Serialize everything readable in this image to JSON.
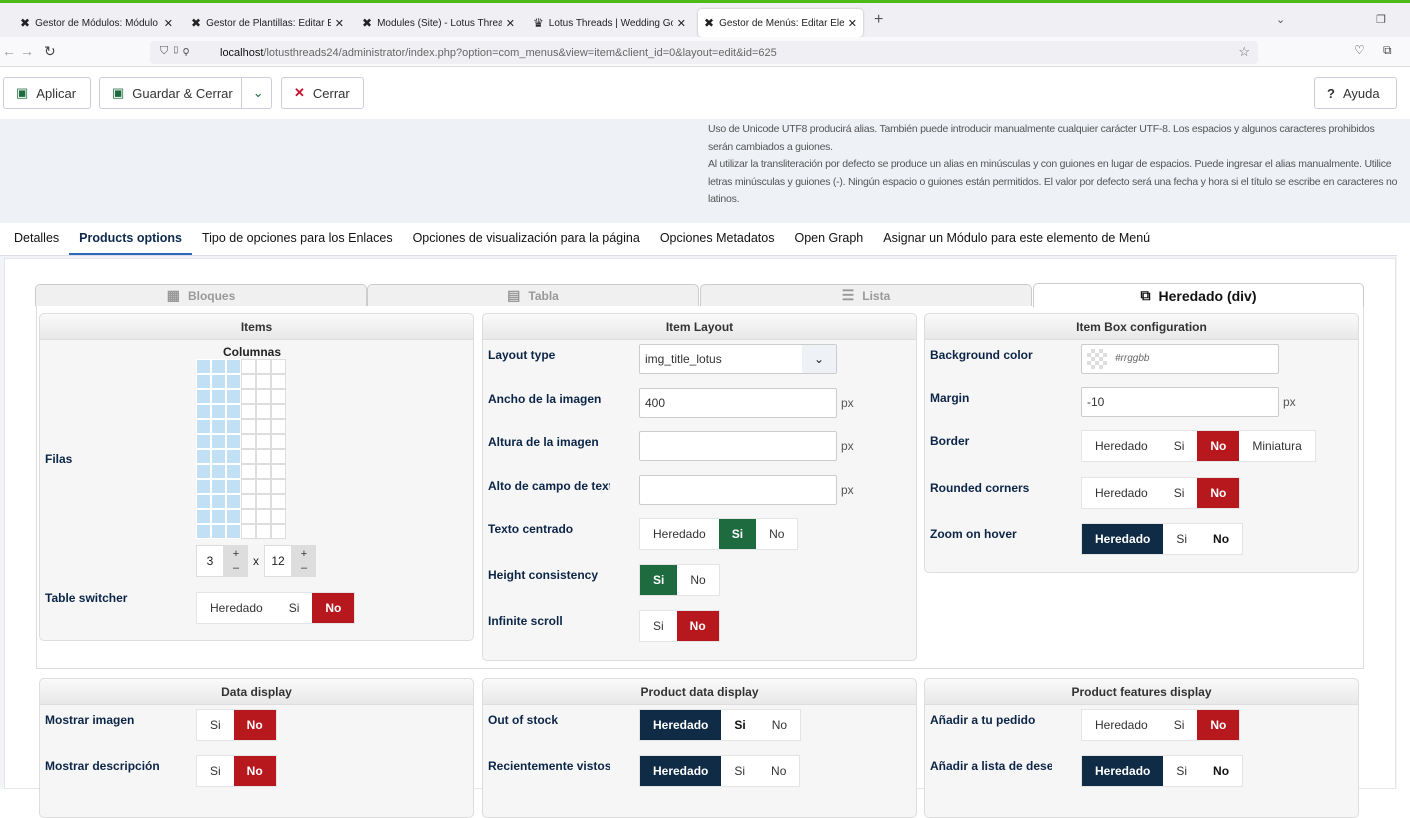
{
  "browser": {
    "tabs": [
      {
        "title": "Gestor de Módulos: Módulo me",
        "icon": "joomla-icon"
      },
      {
        "title": "Gestor de Plantillas: Editar Estilo",
        "icon": "joomla-icon"
      },
      {
        "title": "Modules (Site) - Lotus Threads",
        "icon": "joomla-icon"
      },
      {
        "title": "Lotus Threads | Wedding Gowns",
        "icon": "lotus-icon"
      },
      {
        "title": "Gestor de Menús: Editar Elemen",
        "icon": "joomla-icon",
        "active": true
      }
    ],
    "url_host": "localhost",
    "url_path": "/lotusthreads24/administrator/index.php?option=com_menus&view=item&client_id=0&layout=edit&id=625"
  },
  "toolbar": {
    "apply": "Aplicar",
    "save_close": "Guardar & Cerrar",
    "close": "Cerrar",
    "help": "Ayuda"
  },
  "description": [
    "Uso de Unicode UTF8 producirá alias. También puede introducir manualmente cualquier carácter UTF-8. Los espacios y algunos caracteres prohibidos serán cambiados a guiones.",
    "Al utilizar la transliteración por defecto se produce un alias en minúsculas y con guiones en lugar de espacios. Puede ingresar el alias manualmente. Utilice letras minúsculas y guiones (-). Ningún espacio o guiones están permitidos. El valor por defecto será una fecha y hora si el título se escribe en caracteres no latinos."
  ],
  "tabs": [
    "Detalles",
    "Products options",
    "Tipo de opciones para los Enlaces",
    "Opciones de visualización para la página",
    "Opciones Metadatos",
    "Open Graph",
    "Asignar un Módulo para este elemento de Menú"
  ],
  "active_tab": 1,
  "subtabs": [
    {
      "label": "Bloques",
      "icon": "blocks-icon"
    },
    {
      "label": "Tabla",
      "icon": "table-icon"
    },
    {
      "label": "Lista",
      "icon": "list-icon"
    },
    {
      "label": "Heredado (div)",
      "icon": "div-icon",
      "active": true
    }
  ],
  "colors": {
    "red": "#b7181e",
    "green": "#1e6b40",
    "navy": "#0f2b46"
  },
  "items_panel": {
    "title": "Items",
    "columns_label": "Columnas",
    "rows_label": "Filas",
    "columns": 3,
    "rows": 12,
    "grid_max_columns": 6,
    "x": "x",
    "table_switcher": {
      "label": "Table switcher",
      "options": [
        "Heredado",
        "Si",
        "No"
      ],
      "active": 2,
      "color": "red"
    }
  },
  "panels": [
    {
      "title": "Item Layout",
      "rows": [
        {
          "label": "Layout type",
          "type": "select",
          "value": "img_title_lotus"
        },
        {
          "label": "Ancho de la imagen",
          "type": "input",
          "value": "400",
          "unit": "px"
        },
        {
          "label": "Altura de la imagen",
          "type": "input",
          "value": "",
          "unit": "px"
        },
        {
          "label": "Alto de campo de texto",
          "type": "input",
          "value": "",
          "unit": "px"
        },
        {
          "label": "Texto centrado",
          "type": "seg",
          "options": [
            "Heredado",
            "Si",
            "No"
          ],
          "active": 1,
          "color": "green"
        },
        {
          "label": "Height consistency",
          "type": "seg",
          "options": [
            "Si",
            "No"
          ],
          "active": 0,
          "color": "green"
        },
        {
          "label": "Infinite scroll",
          "type": "seg",
          "options": [
            "Si",
            "No"
          ],
          "active": 1,
          "color": "red"
        }
      ]
    },
    {
      "title": "Item Box configuration",
      "rows": [
        {
          "label": "Background color",
          "type": "color",
          "placeholder": "#rrggbb"
        },
        {
          "label": "Margin",
          "type": "input",
          "value": "-10",
          "unit": "px"
        },
        {
          "label": "Border",
          "type": "seg",
          "options": [
            "Heredado",
            "Si",
            "No",
            "Miniatura"
          ],
          "active": 2,
          "color": "red"
        },
        {
          "label": "Rounded corners",
          "type": "seg",
          "options": [
            "Heredado",
            "Si",
            "No"
          ],
          "active": 2,
          "color": "red"
        },
        {
          "label": "Zoom on hover",
          "type": "seg",
          "options": [
            "Heredado",
            "Si",
            "No"
          ],
          "active": 0,
          "color": "navy",
          "bold": 2
        }
      ]
    },
    {
      "title": "Data display",
      "rows": [
        {
          "label": "Mostrar imagen",
          "type": "seg",
          "options": [
            "Si",
            "No"
          ],
          "active": 1,
          "color": "red"
        },
        {
          "label": "Mostrar descripción",
          "type": "seg",
          "options": [
            "Si",
            "No"
          ],
          "active": 1,
          "color": "red"
        }
      ]
    },
    {
      "title": "Product data display",
      "rows": [
        {
          "label": "Out of stock",
          "type": "seg",
          "options": [
            "Heredado",
            "Si",
            "No"
          ],
          "active": 0,
          "color": "navy",
          "bold": 1
        },
        {
          "label": "Recientemente vistos",
          "type": "seg",
          "options": [
            "Heredado",
            "Si",
            "No"
          ],
          "active": 0,
          "color": "navy"
        }
      ]
    },
    {
      "title": "Product features display",
      "rows": [
        {
          "label": "Añadir a tu pedido",
          "type": "seg",
          "options": [
            "Heredado",
            "Si",
            "No"
          ],
          "active": 2,
          "color": "red"
        },
        {
          "label": "Añadir a lista de deseos",
          "type": "seg",
          "options": [
            "Heredado",
            "Si",
            "No"
          ],
          "active": 0,
          "color": "navy",
          "bold": 2
        }
      ]
    }
  ]
}
